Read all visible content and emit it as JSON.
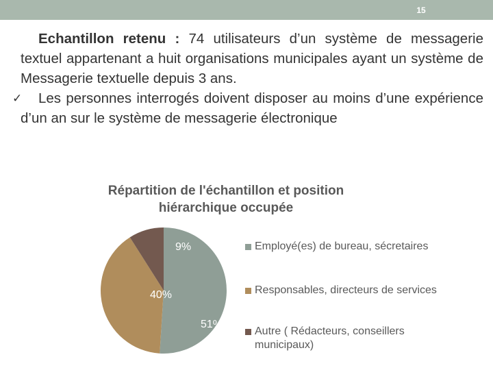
{
  "slide": {
    "number": "15"
  },
  "text": {
    "para1_lead": "Echantillon retenu :",
    "para1_rest": " 74 utilisateurs d’un système de messagerie textuel appartenant a huit organisations municipales ayant un système de Messagerie textuelle depuis 3 ans.",
    "bullet_icon": "check-icon",
    "para2": "Les personnes interrogés  doivent disposer au moins d’une expérience d’un an sur le système de messagerie électronique"
  },
  "colors": {
    "top_bar": "#a9b8ad",
    "series": [
      "#8f9e96",
      "#b08d5c",
      "#73594f"
    ],
    "text": "#333333",
    "chart_text": "#595959"
  },
  "chart_data": {
    "type": "pie",
    "title": "Répartition de l'échantillon et position hiérarchique occupée",
    "categories": [
      "Employé(es) de bureau, sécretaires",
      "Responsables, directeurs de services",
      "Autre ( Rédacteurs, conseillers municipaux)"
    ],
    "values": [
      51,
      40,
      9
    ],
    "data_labels": [
      "51%",
      "40%",
      "9%"
    ],
    "legend": "right"
  }
}
